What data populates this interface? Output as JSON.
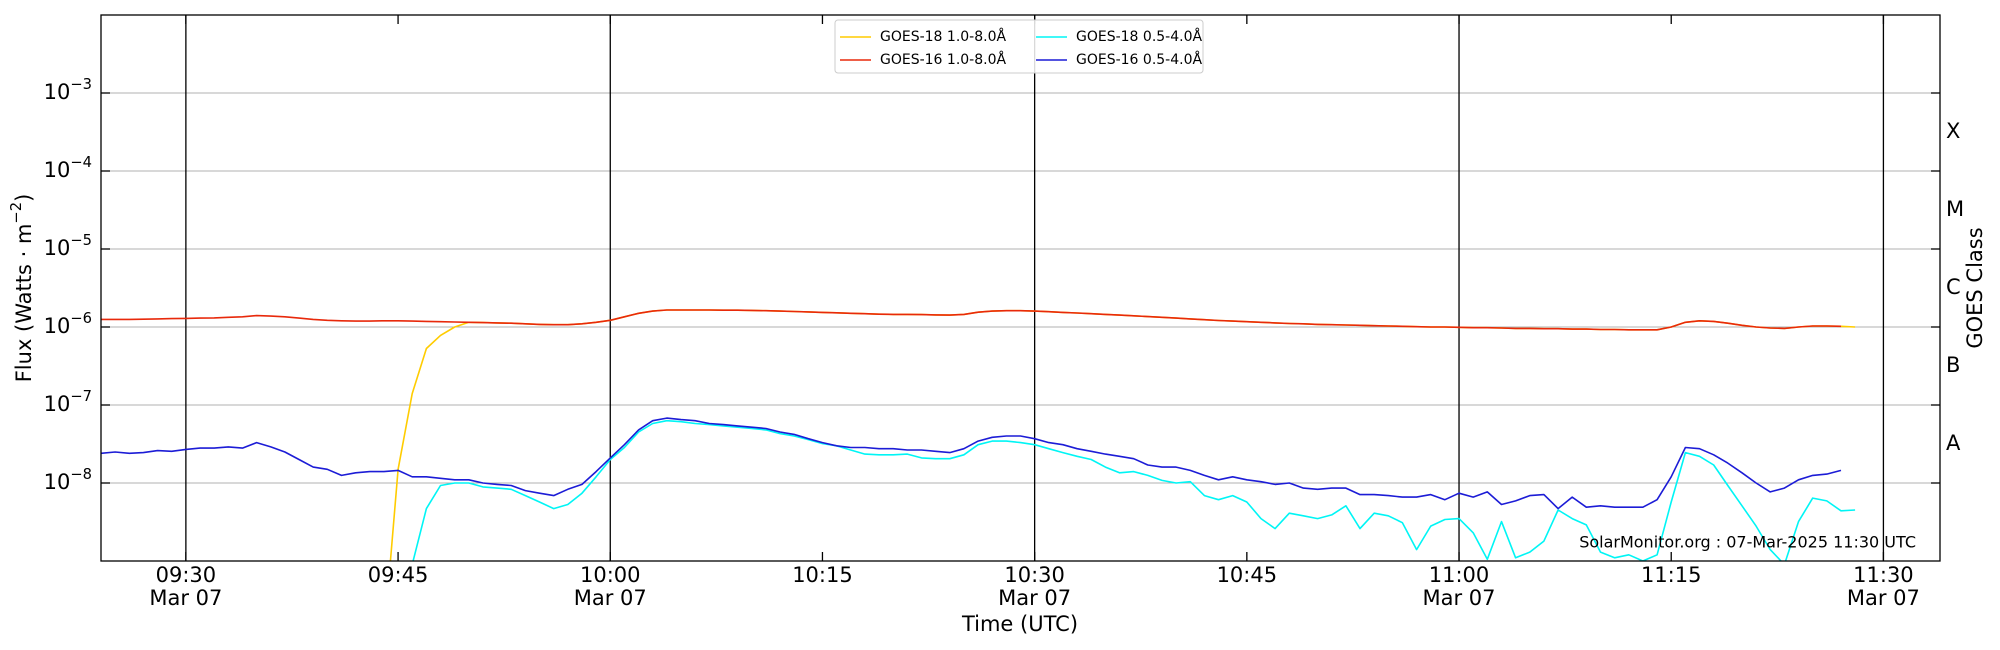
{
  "chart_data": {
    "type": "line",
    "xlabel": "Time (UTC)",
    "ylabel": "Flux (Watts · m−2)",
    "y2label": "GOES Class",
    "annotation": "SolarMonitor.org : 07-Mar-2025 11:30 UTC",
    "log_y": true,
    "grid": true,
    "legend": "upper center",
    "xlim": [
      "09:24",
      "11:34"
    ],
    "xticks": [
      {
        "value": "09:30",
        "label": [
          "09:30",
          "Mar 07"
        ]
      },
      {
        "value": "09:45",
        "label": [
          "09:45"
        ]
      },
      {
        "value": "10:00",
        "label": [
          "10:00",
          "Mar 07"
        ]
      },
      {
        "value": "10:15",
        "label": [
          "10:15"
        ]
      },
      {
        "value": "10:30",
        "label": [
          "10:30",
          "Mar 07"
        ]
      },
      {
        "value": "10:45",
        "label": [
          "10:45"
        ]
      },
      {
        "value": "11:00",
        "label": [
          "11:00",
          "Mar 07"
        ]
      },
      {
        "value": "11:15",
        "label": [
          "11:15"
        ]
      },
      {
        "value": "11:30",
        "label": [
          "11:30",
          "Mar 07"
        ]
      }
    ],
    "vlines": [
      "09:30",
      "10:00",
      "10:30",
      "11:00",
      "11:30"
    ],
    "ylim": [
      1e-09,
      0.01
    ],
    "yticks": [
      {
        "value": 1e-08,
        "label": "10−8"
      },
      {
        "value": 1e-07,
        "label": "10−7"
      },
      {
        "value": 1e-06,
        "label": "10−6"
      },
      {
        "value": 1e-05,
        "label": "10−5"
      },
      {
        "value": 0.0001,
        "label": "10−4"
      },
      {
        "value": 0.001,
        "label": "10−3"
      }
    ],
    "y2lim": [
      1e-09,
      0.01
    ],
    "y2ticks": [
      {
        "value": 3.16e-08,
        "label": "A"
      },
      {
        "value": 3.16e-07,
        "label": "B"
      },
      {
        "value": 3.16e-06,
        "label": "C"
      },
      {
        "value": 3.16e-05,
        "label": "M"
      },
      {
        "value": 0.000316,
        "label": "X"
      }
    ],
    "x": [
      "09:24",
      "09:25",
      "09:26",
      "09:27",
      "09:28",
      "09:29",
      "09:30",
      "09:31",
      "09:32",
      "09:33",
      "09:34",
      "09:35",
      "09:36",
      "09:37",
      "09:38",
      "09:39",
      "09:40",
      "09:41",
      "09:42",
      "09:43",
      "09:44",
      "09:45",
      "09:46",
      "09:47",
      "09:48",
      "09:49",
      "09:50",
      "09:51",
      "09:52",
      "09:53",
      "09:54",
      "09:55",
      "09:56",
      "09:57",
      "09:58",
      "09:59",
      "10:00",
      "10:01",
      "10:02",
      "10:03",
      "10:04",
      "10:05",
      "10:06",
      "10:07",
      "10:08",
      "10:09",
      "10:10",
      "10:11",
      "10:12",
      "10:13",
      "10:14",
      "10:15",
      "10:16",
      "10:17",
      "10:18",
      "10:19",
      "10:20",
      "10:21",
      "10:22",
      "10:23",
      "10:24",
      "10:25",
      "10:26",
      "10:27",
      "10:28",
      "10:29",
      "10:30",
      "10:31",
      "10:32",
      "10:33",
      "10:34",
      "10:35",
      "10:36",
      "10:37",
      "10:38",
      "10:39",
      "10:40",
      "10:41",
      "10:42",
      "10:43",
      "10:44",
      "10:45",
      "10:46",
      "10:47",
      "10:48",
      "10:49",
      "10:50",
      "10:51",
      "10:52",
      "10:53",
      "10:54",
      "10:55",
      "10:56",
      "10:57",
      "10:58",
      "10:59",
      "11:00",
      "11:01",
      "11:02",
      "11:03",
      "11:04",
      "11:05",
      "11:06",
      "11:07",
      "11:08",
      "11:09",
      "11:10",
      "11:11",
      "11:12",
      "11:13",
      "11:14",
      "11:15",
      "11:16",
      "11:17",
      "11:18",
      "11:19",
      "11:20",
      "11:21",
      "11:22",
      "11:23",
      "11:24",
      "11:25",
      "11:26",
      "11:27",
      "11:28"
    ],
    "series": [
      {
        "name": "GOES-18 1.0-8.0Å",
        "color": "#ffcc00",
        "values": [
          null,
          null,
          null,
          null,
          null,
          null,
          null,
          null,
          null,
          null,
          null,
          null,
          null,
          null,
          null,
          null,
          null,
          null,
          null,
          null,
          1e-10,
          1.5e-08,
          1.4e-07,
          5.3e-07,
          7.8e-07,
          1e-06,
          1.15e-06,
          1.14e-06,
          1.13e-06,
          1.12e-06,
          1.1e-06,
          1.08e-06,
          1.07e-06,
          1.07e-06,
          1.1e-06,
          1.15e-06,
          1.22e-06,
          1.35e-06,
          1.5e-06,
          1.6e-06,
          1.65e-06,
          1.65e-06,
          1.65e-06,
          1.65e-06,
          1.64e-06,
          1.64e-06,
          1.63e-06,
          1.62e-06,
          1.6e-06,
          1.58e-06,
          1.56e-06,
          1.54e-06,
          1.52e-06,
          1.5e-06,
          1.48e-06,
          1.46e-06,
          1.45e-06,
          1.45e-06,
          1.44e-06,
          1.43e-06,
          1.42e-06,
          1.45e-06,
          1.55e-06,
          1.6e-06,
          1.62e-06,
          1.62e-06,
          1.6e-06,
          1.57e-06,
          1.54e-06,
          1.51e-06,
          1.48e-06,
          1.45e-06,
          1.42e-06,
          1.39e-06,
          1.36e-06,
          1.33e-06,
          1.3e-06,
          1.27e-06,
          1.24e-06,
          1.21e-06,
          1.19e-06,
          1.17e-06,
          1.15e-06,
          1.13e-06,
          1.11e-06,
          1.1e-06,
          1.08e-06,
          1.07e-06,
          1.06e-06,
          1.05e-06,
          1.04e-06,
          1.03e-06,
          1.02e-06,
          1.01e-06,
          1e-06,
          1e-06,
          9.9e-07,
          9.8e-07,
          9.8e-07,
          9.7e-07,
          9.6e-07,
          9.6e-07,
          9.5e-07,
          9.5e-07,
          9.4e-07,
          9.4e-07,
          9.3e-07,
          9.3e-07,
          9.2e-07,
          9.2e-07,
          9.2e-07,
          1e-06,
          1.15e-06,
          1.2e-06,
          1.18e-06,
          1.12e-06,
          1.05e-06,
          1e-06,
          9.7e-07,
          9.6e-07,
          1e-06,
          1.03e-06,
          1.03e-06,
          1.02e-06,
          1e-06
        ]
      },
      {
        "name": "GOES-16 1.0-8.0Å",
        "color": "#e8290b",
        "values": [
          1.25e-06,
          1.25e-06,
          1.25e-06,
          1.26e-06,
          1.27e-06,
          1.28e-06,
          1.29e-06,
          1.3e-06,
          1.31e-06,
          1.33e-06,
          1.35e-06,
          1.4e-06,
          1.38e-06,
          1.35e-06,
          1.3e-06,
          1.25e-06,
          1.22e-06,
          1.2e-06,
          1.19e-06,
          1.19e-06,
          1.2e-06,
          1.2e-06,
          1.19e-06,
          1.18e-06,
          1.17e-06,
          1.16e-06,
          1.15e-06,
          1.14e-06,
          1.13e-06,
          1.12e-06,
          1.1e-06,
          1.08e-06,
          1.07e-06,
          1.07e-06,
          1.1e-06,
          1.15e-06,
          1.22e-06,
          1.35e-06,
          1.5e-06,
          1.6e-06,
          1.65e-06,
          1.65e-06,
          1.65e-06,
          1.65e-06,
          1.64e-06,
          1.64e-06,
          1.63e-06,
          1.62e-06,
          1.6e-06,
          1.58e-06,
          1.56e-06,
          1.54e-06,
          1.52e-06,
          1.5e-06,
          1.48e-06,
          1.46e-06,
          1.45e-06,
          1.45e-06,
          1.44e-06,
          1.43e-06,
          1.42e-06,
          1.45e-06,
          1.55e-06,
          1.6e-06,
          1.62e-06,
          1.62e-06,
          1.6e-06,
          1.57e-06,
          1.54e-06,
          1.51e-06,
          1.48e-06,
          1.45e-06,
          1.42e-06,
          1.39e-06,
          1.36e-06,
          1.33e-06,
          1.3e-06,
          1.27e-06,
          1.24e-06,
          1.21e-06,
          1.19e-06,
          1.17e-06,
          1.15e-06,
          1.13e-06,
          1.11e-06,
          1.1e-06,
          1.08e-06,
          1.07e-06,
          1.06e-06,
          1.05e-06,
          1.04e-06,
          1.03e-06,
          1.02e-06,
          1.01e-06,
          1e-06,
          1e-06,
          9.9e-07,
          9.8e-07,
          9.8e-07,
          9.7e-07,
          9.6e-07,
          9.6e-07,
          9.5e-07,
          9.5e-07,
          9.4e-07,
          9.4e-07,
          9.3e-07,
          9.3e-07,
          9.2e-07,
          9.2e-07,
          9.2e-07,
          1e-06,
          1.15e-06,
          1.2e-06,
          1.18e-06,
          1.12e-06,
          1.05e-06,
          1e-06,
          9.7e-07,
          9.6e-07,
          1e-06,
          1.03e-06,
          1.03e-06,
          1.02e-06,
          null
        ]
      },
      {
        "name": "GOES-18 0.5-4.0Å",
        "color": "#00f5f5",
        "values": [
          null,
          null,
          null,
          null,
          null,
          null,
          null,
          null,
          null,
          null,
          null,
          null,
          null,
          null,
          null,
          null,
          null,
          null,
          null,
          null,
          null,
          null,
          9e-10,
          4.7e-09,
          9.3e-09,
          1e-08,
          1e-08,
          8.9e-09,
          8.6e-09,
          8.3e-09,
          6.9e-09,
          5.7e-09,
          4.7e-09,
          5.3e-09,
          7.4e-09,
          1.2e-08,
          2e-08,
          2.85e-08,
          4.5e-08,
          5.8e-08,
          6.3e-08,
          6.1e-08,
          5.8e-08,
          5.6e-08,
          5.4e-08,
          5.2e-08,
          5e-08,
          4.8e-08,
          4.3e-08,
          4e-08,
          3.6e-08,
          3.2e-08,
          3e-08,
          2.65e-08,
          2.35e-08,
          2.3e-08,
          2.3e-08,
          2.35e-08,
          2.1e-08,
          2.05e-08,
          2.05e-08,
          2.3e-08,
          3.1e-08,
          3.45e-08,
          3.45e-08,
          3.3e-08,
          3.1e-08,
          2.75e-08,
          2.45e-08,
          2.2e-08,
          2e-08,
          1.6e-08,
          1.35e-08,
          1.4e-08,
          1.25e-08,
          1.08e-08,
          1e-08,
          1.04e-08,
          6.9e-09,
          6.1e-09,
          6.9e-09,
          5.7e-09,
          3.5e-09,
          2.6e-09,
          4.1e-09,
          3.8e-09,
          3.5e-09,
          3.9e-09,
          5.1e-09,
          2.6e-09,
          4.1e-09,
          3.8e-09,
          3.1e-09,
          1.4e-09,
          2.8e-09,
          3.4e-09,
          3.5e-09,
          2.3e-09,
          1.05e-09,
          3.2e-09,
          1.1e-09,
          1.3e-09,
          1.8e-09,
          4.5e-09,
          3.5e-09,
          2.9e-09,
          1.3e-09,
          1.1e-09,
          1.2e-09,
          1e-09,
          1.2e-09,
          5.7e-09,
          2.45e-08,
          2.2e-08,
          1.7e-08,
          9.3e-09,
          5.1e-09,
          2.8e-09,
          1.4e-09,
          9e-10,
          3.2e-09,
          6.4e-09,
          5.9e-09,
          4.4e-09,
          4.5e-09
        ]
      },
      {
        "name": "GOES-16 0.5-4.0Å",
        "color": "#1c1cd6",
        "values": [
          2.4e-08,
          2.5e-08,
          2.4e-08,
          2.45e-08,
          2.6e-08,
          2.55e-08,
          2.7e-08,
          2.8e-08,
          2.8e-08,
          2.9e-08,
          2.8e-08,
          3.3e-08,
          2.9e-08,
          2.5e-08,
          2e-08,
          1.6e-08,
          1.5e-08,
          1.25e-08,
          1.35e-08,
          1.4e-08,
          1.4e-08,
          1.45e-08,
          1.2e-08,
          1.2e-08,
          1.15e-08,
          1.1e-08,
          1.1e-08,
          1e-08,
          9.6e-09,
          9.3e-09,
          8e-09,
          7.4e-09,
          6.9e-09,
          8.3e-09,
          9.6e-09,
          1.4e-08,
          2.1e-08,
          3.1e-08,
          4.8e-08,
          6.3e-08,
          6.8e-08,
          6.5e-08,
          6.3e-08,
          5.8e-08,
          5.6e-08,
          5.4e-08,
          5.2e-08,
          5e-08,
          4.5e-08,
          4.2e-08,
          3.7e-08,
          3.3e-08,
          3e-08,
          2.85e-08,
          2.85e-08,
          2.75e-08,
          2.75e-08,
          2.65e-08,
          2.65e-08,
          2.55e-08,
          2.45e-08,
          2.75e-08,
          3.45e-08,
          3.85e-08,
          4e-08,
          4e-08,
          3.7e-08,
          3.3e-08,
          3.1e-08,
          2.75e-08,
          2.55e-08,
          2.35e-08,
          2.2e-08,
          2.05e-08,
          1.7e-08,
          1.6e-08,
          1.6e-08,
          1.45e-08,
          1.25e-08,
          1.1e-08,
          1.2e-08,
          1.1e-08,
          1.04e-08,
          9.6e-09,
          1e-08,
          8.6e-09,
          8.3e-09,
          8.6e-09,
          8.6e-09,
          7.1e-09,
          7.1e-09,
          6.9e-09,
          6.6e-09,
          6.6e-09,
          7.1e-09,
          6.1e-09,
          7.4e-09,
          6.6e-09,
          7.7e-09,
          5.3e-09,
          5.9e-09,
          6.9e-09,
          7.1e-09,
          4.7e-09,
          6.6e-09,
          4.9e-09,
          5.1e-09,
          4.9e-09,
          4.9e-09,
          4.9e-09,
          6.1e-09,
          1.2e-08,
          2.85e-08,
          2.75e-08,
          2.3e-08,
          1.8e-08,
          1.35e-08,
          1e-08,
          7.7e-09,
          8.6e-09,
          1.1e-08,
          1.25e-08,
          1.3e-08,
          1.45e-08,
          null
        ]
      }
    ]
  }
}
